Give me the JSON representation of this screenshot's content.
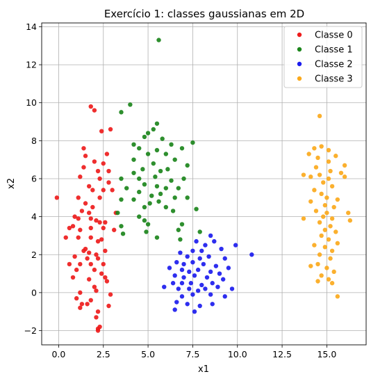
{
  "chart_data": {
    "type": "scatter",
    "title": "Exercício 1: classes gaussianas em 2D",
    "xlabel": "x1",
    "ylabel": "x2",
    "xlim": [
      -0.95,
      17.2
    ],
    "ylim": [
      -2.75,
      14.2
    ],
    "xticks": [
      0.0,
      2.5,
      5.0,
      7.5,
      10.0,
      12.5,
      15.0
    ],
    "xtick_labels": [
      "0.0",
      "2.5",
      "5.0",
      "7.5",
      "10.0",
      "12.5",
      "15.0"
    ],
    "yticks": [
      -2,
      0,
      2,
      4,
      6,
      8,
      10,
      12,
      14
    ],
    "ytick_labels": [
      "−2",
      "0",
      "2",
      "4",
      "6",
      "8",
      "10",
      "12",
      "14"
    ],
    "grid": true,
    "legend_position": "top-right",
    "series": [
      {
        "name": "Classe 0",
        "color": "#ee1c1c",
        "points": [
          [
            1.8,
            9.8
          ],
          [
            2.0,
            9.6
          ],
          [
            1.4,
            7.6
          ],
          [
            2.4,
            8.5
          ],
          [
            2.9,
            8.6
          ],
          [
            1.5,
            7.2
          ],
          [
            2.7,
            7.3
          ],
          [
            2.5,
            6.8
          ],
          [
            2.0,
            6.9
          ],
          [
            2.2,
            6.4
          ],
          [
            2.8,
            6.4
          ],
          [
            1.4,
            6.6
          ],
          [
            1.2,
            6.1
          ],
          [
            2.3,
            6.0
          ],
          [
            2.8,
            5.8
          ],
          [
            1.7,
            5.6
          ],
          [
            1.9,
            5.4
          ],
          [
            2.5,
            5.4
          ],
          [
            3.0,
            5.4
          ],
          [
            2.3,
            5.0
          ],
          [
            1.1,
            5.0
          ],
          [
            -0.1,
            5.0
          ],
          [
            1.5,
            4.7
          ],
          [
            1.9,
            4.5
          ],
          [
            1.3,
            4.3
          ],
          [
            1.7,
            4.2
          ],
          [
            3.2,
            4.2
          ],
          [
            0.9,
            4.0
          ],
          [
            1.1,
            3.9
          ],
          [
            1.8,
            3.9
          ],
          [
            2.1,
            3.8
          ],
          [
            2.6,
            3.7
          ],
          [
            2.3,
            3.7
          ],
          [
            0.8,
            3.5
          ],
          [
            0.6,
            3.4
          ],
          [
            1.2,
            3.3
          ],
          [
            1.8,
            3.4
          ],
          [
            2.5,
            3.4
          ],
          [
            3.1,
            3.3
          ],
          [
            0.4,
            2.9
          ],
          [
            1.1,
            2.9
          ],
          [
            1.8,
            2.9
          ],
          [
            2.2,
            2.7
          ],
          [
            2.4,
            2.8
          ],
          [
            1.4,
            2.2
          ],
          [
            1.5,
            2.3
          ],
          [
            1.7,
            2.1
          ],
          [
            2.1,
            2.0
          ],
          [
            2.6,
            2.2
          ],
          [
            0.9,
            1.9
          ],
          [
            1.6,
            1.8
          ],
          [
            2.2,
            1.8
          ],
          [
            0.6,
            1.5
          ],
          [
            1.2,
            1.5
          ],
          [
            1.8,
            1.5
          ],
          [
            2.5,
            1.5
          ],
          [
            1.0,
            1.2
          ],
          [
            2.0,
            1.2
          ],
          [
            2.4,
            1.0
          ],
          [
            0.8,
            0.8
          ],
          [
            1.7,
            0.7
          ],
          [
            2.6,
            0.8
          ],
          [
            2.7,
            0.6
          ],
          [
            2.0,
            0.3
          ],
          [
            2.1,
            0.1
          ],
          [
            1.2,
            0.0
          ],
          [
            2.9,
            -0.1
          ],
          [
            1.0,
            -0.3
          ],
          [
            1.8,
            -0.4
          ],
          [
            1.3,
            -0.6
          ],
          [
            1.6,
            -0.6
          ],
          [
            1.2,
            -0.8
          ],
          [
            2.8,
            -0.7
          ],
          [
            2.2,
            -1.0
          ],
          [
            2.1,
            -1.3
          ],
          [
            2.3,
            -1.8
          ],
          [
            2.2,
            -1.9
          ],
          [
            2.2,
            -2.0
          ]
        ]
      },
      {
        "name": "Classe 1",
        "color": "#1c861c",
        "points": [
          [
            5.6,
            13.3
          ],
          [
            4.0,
            9.9
          ],
          [
            3.5,
            9.5
          ],
          [
            5.3,
            8.6
          ],
          [
            5.5,
            8.9
          ],
          [
            4.8,
            8.2
          ],
          [
            5.0,
            8.4
          ],
          [
            5.8,
            8.1
          ],
          [
            4.2,
            7.8
          ],
          [
            6.3,
            7.8
          ],
          [
            7.5,
            7.9
          ],
          [
            6.9,
            7.6
          ],
          [
            4.5,
            7.6
          ],
          [
            5.5,
            7.5
          ],
          [
            6.0,
            7.3
          ],
          [
            5.0,
            7.3
          ],
          [
            6.5,
            7.0
          ],
          [
            4.2,
            7.0
          ],
          [
            5.3,
            6.8
          ],
          [
            6.1,
            6.5
          ],
          [
            7.2,
            6.7
          ],
          [
            4.7,
            6.5
          ],
          [
            5.7,
            6.4
          ],
          [
            4.2,
            6.3
          ],
          [
            3.5,
            6.0
          ],
          [
            4.5,
            6.0
          ],
          [
            5.4,
            6.1
          ],
          [
            6.3,
            5.9
          ],
          [
            7.0,
            6.0
          ],
          [
            4.8,
            5.7
          ],
          [
            5.5,
            5.6
          ],
          [
            3.8,
            5.5
          ],
          [
            6.0,
            5.5
          ],
          [
            6.7,
            5.5
          ],
          [
            4.5,
            5.3
          ],
          [
            5.2,
            5.1
          ],
          [
            5.7,
            5.2
          ],
          [
            6.5,
            5.0
          ],
          [
            7.2,
            5.0
          ],
          [
            3.5,
            4.9
          ],
          [
            4.2,
            4.9
          ],
          [
            5.1,
            4.7
          ],
          [
            5.6,
            4.8
          ],
          [
            6.0,
            4.5
          ],
          [
            4.8,
            4.5
          ],
          [
            6.4,
            4.3
          ],
          [
            3.3,
            4.2
          ],
          [
            7.7,
            4.4
          ],
          [
            4.5,
            4.0
          ],
          [
            3.5,
            3.5
          ],
          [
            4.8,
            3.8
          ],
          [
            5.0,
            3.6
          ],
          [
            6.9,
            3.6
          ],
          [
            4.9,
            3.2
          ],
          [
            6.7,
            3.3
          ],
          [
            7.9,
            3.2
          ],
          [
            3.6,
            3.1
          ],
          [
            5.5,
            2.9
          ],
          [
            6.8,
            2.8
          ]
        ]
      },
      {
        "name": "Classe 2",
        "color": "#1c1cee",
        "points": [
          [
            10.8,
            2.0
          ],
          [
            9.9,
            2.5
          ],
          [
            8.5,
            3.0
          ],
          [
            7.7,
            2.7
          ],
          [
            8.2,
            2.5
          ],
          [
            8.7,
            2.7
          ],
          [
            9.1,
            2.3
          ],
          [
            7.5,
            2.2
          ],
          [
            8.0,
            2.2
          ],
          [
            6.8,
            2.1
          ],
          [
            7.2,
            1.9
          ],
          [
            7.9,
            1.8
          ],
          [
            8.4,
            1.9
          ],
          [
            9.3,
            1.8
          ],
          [
            6.6,
            1.6
          ],
          [
            7.0,
            1.5
          ],
          [
            7.5,
            1.6
          ],
          [
            8.1,
            1.5
          ],
          [
            8.8,
            1.4
          ],
          [
            9.5,
            1.3
          ],
          [
            6.2,
            1.3
          ],
          [
            6.9,
            1.2
          ],
          [
            7.3,
            1.1
          ],
          [
            7.8,
            1.2
          ],
          [
            8.5,
            1.1
          ],
          [
            9.0,
            1.0
          ],
          [
            6.5,
            0.9
          ],
          [
            7.0,
            0.8
          ],
          [
            7.6,
            0.9
          ],
          [
            8.3,
            0.8
          ],
          [
            9.2,
            0.7
          ],
          [
            6.4,
            0.5
          ],
          [
            6.9,
            0.5
          ],
          [
            7.4,
            0.5
          ],
          [
            8.0,
            0.4
          ],
          [
            8.6,
            0.5
          ],
          [
            5.9,
            0.3
          ],
          [
            6.7,
            0.2
          ],
          [
            7.3,
            0.2
          ],
          [
            7.8,
            0.1
          ],
          [
            8.2,
            0.2
          ],
          [
            8.9,
            0.3
          ],
          [
            9.7,
            0.2
          ],
          [
            6.9,
            -0.2
          ],
          [
            7.5,
            -0.1
          ],
          [
            8.5,
            -0.1
          ],
          [
            9.3,
            -0.2
          ],
          [
            6.6,
            -0.5
          ],
          [
            7.2,
            -0.6
          ],
          [
            7.9,
            -0.7
          ],
          [
            8.6,
            -0.6
          ],
          [
            6.5,
            -0.9
          ],
          [
            7.6,
            -1.0
          ]
        ]
      },
      {
        "name": "Classe 3",
        "color": "#fba91c",
        "points": [
          [
            14.6,
            9.3
          ],
          [
            14.3,
            7.6
          ],
          [
            14.7,
            7.7
          ],
          [
            15.1,
            7.5
          ],
          [
            14.0,
            7.3
          ],
          [
            14.5,
            7.1
          ],
          [
            15.5,
            7.2
          ],
          [
            15.1,
            6.9
          ],
          [
            14.4,
            6.6
          ],
          [
            16.0,
            6.7
          ],
          [
            15.2,
            6.4
          ],
          [
            15.8,
            6.3
          ],
          [
            14.1,
            6.1
          ],
          [
            14.6,
            6.2
          ],
          [
            15.1,
            6.0
          ],
          [
            16.0,
            6.1
          ],
          [
            13.7,
            6.2
          ],
          [
            14.8,
            5.8
          ],
          [
            15.3,
            5.6
          ],
          [
            14.3,
            5.4
          ],
          [
            14.7,
            5.2
          ],
          [
            15.0,
            5.0
          ],
          [
            15.6,
            4.9
          ],
          [
            14.1,
            4.8
          ],
          [
            14.9,
            4.6
          ],
          [
            15.4,
            4.5
          ],
          [
            14.4,
            4.3
          ],
          [
            15.0,
            4.2
          ],
          [
            16.2,
            4.2
          ],
          [
            14.8,
            4.0
          ],
          [
            15.3,
            3.9
          ],
          [
            13.7,
            3.9
          ],
          [
            14.6,
            3.7
          ],
          [
            15.2,
            3.5
          ],
          [
            16.3,
            3.8
          ],
          [
            14.9,
            3.3
          ],
          [
            15.5,
            3.2
          ],
          [
            14.7,
            3.0
          ],
          [
            15.1,
            2.8
          ],
          [
            15.6,
            2.6
          ],
          [
            14.3,
            2.5
          ],
          [
            14.9,
            2.4
          ],
          [
            15.3,
            2.2
          ],
          [
            14.6,
            2.0
          ],
          [
            15.2,
            1.8
          ],
          [
            14.5,
            1.5
          ],
          [
            14.1,
            1.4
          ],
          [
            15.0,
            1.3
          ],
          [
            15.4,
            1.1
          ],
          [
            14.7,
            0.9
          ],
          [
            15.1,
            0.7
          ],
          [
            14.5,
            0.6
          ],
          [
            15.3,
            0.5
          ],
          [
            15.6,
            -0.2
          ]
        ]
      }
    ]
  }
}
